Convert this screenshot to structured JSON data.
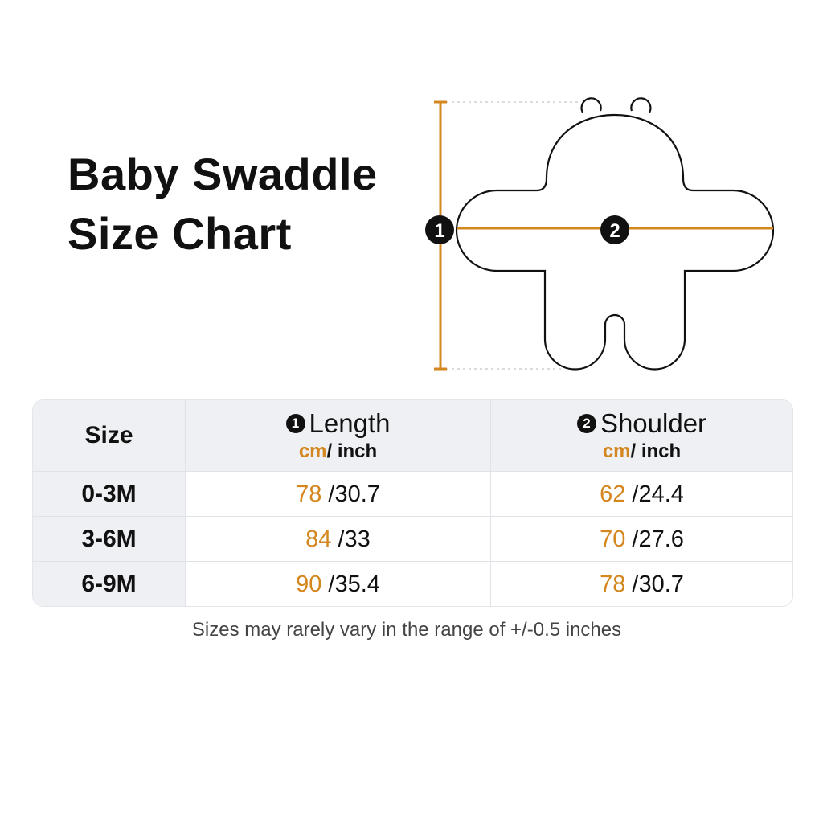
{
  "title": {
    "line1": "Baby Swaddle",
    "line2": "Size Chart"
  },
  "diagram": {
    "marker1": "1",
    "marker2": "2",
    "accent_color": "#d4861f",
    "icon": "swaddle-outline"
  },
  "table": {
    "headers": {
      "size": "Size",
      "length": {
        "badge": "1",
        "label": "Length",
        "unit_cm": "cm",
        "unit_inch": "/ inch"
      },
      "shoulder": {
        "badge": "2",
        "label": "Shoulder",
        "unit_cm": "cm",
        "unit_inch": "/ inch"
      }
    },
    "rows": [
      {
        "size": "0-3M",
        "length_cm": "78",
        "length_in": "/30.7",
        "shoulder_cm": "62",
        "shoulder_in": "/24.4"
      },
      {
        "size": "3-6M",
        "length_cm": "84",
        "length_in": "/33",
        "shoulder_cm": "70",
        "shoulder_in": "/27.6"
      },
      {
        "size": "6-9M",
        "length_cm": "90",
        "length_in": "/35.4",
        "shoulder_cm": "78",
        "shoulder_in": "/30.7"
      }
    ]
  },
  "note": "Sizes may rarely vary in the range of +/-0.5 inches"
}
